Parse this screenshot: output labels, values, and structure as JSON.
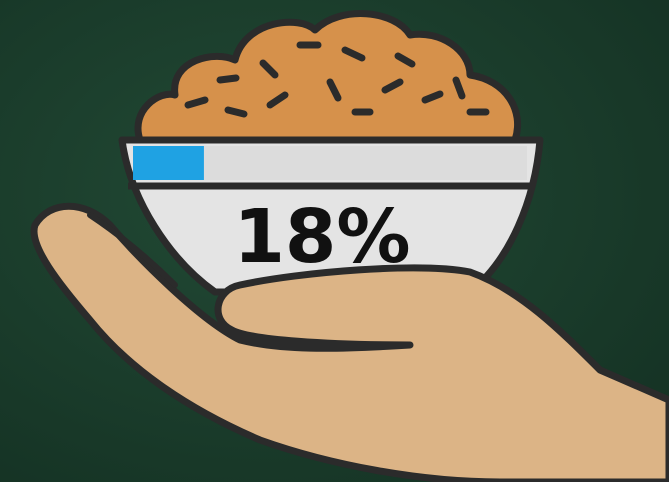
{
  "progress": {
    "value": 18,
    "label": "18%"
  }
}
